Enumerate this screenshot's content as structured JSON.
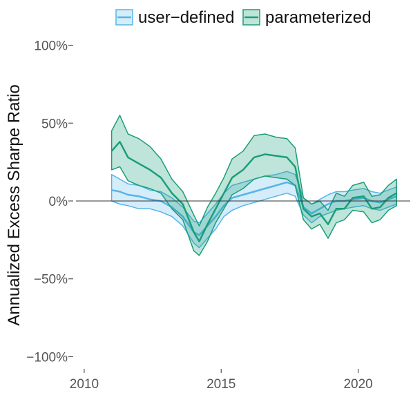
{
  "chart_data": {
    "type": "area",
    "title": "",
    "xlabel": "",
    "ylabel": "Annualized Excess Sharpe Ratio",
    "xlim": [
      2009.7,
      2021.9
    ],
    "ylim": [
      -1.06,
      1.06
    ],
    "x_ticks": [
      2010,
      2015,
      2020
    ],
    "y_ticks": [
      -1.0,
      -0.5,
      0.0,
      0.5,
      1.0
    ],
    "x_tick_labels": [
      "2010",
      "2015",
      "2020"
    ],
    "y_tick_labels": [
      "−100%",
      "−50%",
      "0%",
      "50%",
      "100%"
    ],
    "y_format": "percent",
    "grid": false,
    "reference_line_y": 0,
    "legend_position": "top",
    "series": [
      {
        "name": "user−defined",
        "color": "#56B4E9",
        "x": [
          2011.0,
          2011.3,
          2011.6,
          2012.0,
          2012.4,
          2012.8,
          2013.2,
          2013.6,
          2014.0,
          2014.2,
          2014.5,
          2014.8,
          2015.1,
          2015.4,
          2015.8,
          2016.2,
          2016.6,
          2017.0,
          2017.4,
          2017.7,
          2018.0,
          2018.3,
          2018.6,
          2018.9,
          2019.2,
          2019.5,
          2019.8,
          2020.2,
          2020.5,
          2020.8,
          2021.1,
          2021.4
        ],
        "mean": [
          0.07,
          0.06,
          0.04,
          0.03,
          0.01,
          0.0,
          -0.04,
          -0.1,
          -0.2,
          -0.22,
          -0.16,
          -0.1,
          -0.03,
          0.02,
          0.04,
          0.06,
          0.08,
          0.1,
          0.12,
          0.1,
          -0.04,
          -0.08,
          -0.05,
          -0.02,
          0.0,
          0.0,
          0.01,
          0.02,
          0.0,
          -0.01,
          0.01,
          0.03
        ],
        "lower": [
          0.0,
          -0.02,
          -0.03,
          -0.05,
          -0.05,
          -0.07,
          -0.1,
          -0.16,
          -0.27,
          -0.3,
          -0.24,
          -0.18,
          -0.1,
          -0.06,
          -0.03,
          -0.01,
          0.01,
          0.03,
          0.05,
          0.03,
          -0.09,
          -0.14,
          -0.1,
          -0.08,
          -0.06,
          -0.05,
          -0.04,
          -0.03,
          -0.05,
          -0.06,
          -0.04,
          -0.02
        ],
        "upper": [
          0.17,
          0.14,
          0.11,
          0.1,
          0.07,
          0.06,
          0.02,
          -0.04,
          -0.13,
          -0.14,
          -0.08,
          -0.02,
          0.05,
          0.1,
          0.12,
          0.14,
          0.16,
          0.17,
          0.19,
          0.17,
          0.02,
          -0.02,
          0.01,
          0.04,
          0.06,
          0.06,
          0.07,
          0.08,
          0.06,
          0.05,
          0.07,
          0.09
        ]
      },
      {
        "name": "parameterized",
        "color": "#1A9E77",
        "x": [
          2011.0,
          2011.3,
          2011.6,
          2012.0,
          2012.4,
          2012.8,
          2013.2,
          2013.6,
          2014.0,
          2014.2,
          2014.5,
          2014.8,
          2015.1,
          2015.4,
          2015.8,
          2016.2,
          2016.6,
          2017.0,
          2017.4,
          2017.7,
          2018.0,
          2018.3,
          2018.6,
          2018.9,
          2019.2,
          2019.5,
          2019.8,
          2020.2,
          2020.5,
          2020.8,
          2021.1,
          2021.4
        ],
        "mean": [
          0.32,
          0.38,
          0.28,
          0.24,
          0.2,
          0.15,
          0.05,
          -0.02,
          -0.2,
          -0.26,
          -0.15,
          -0.05,
          0.05,
          0.15,
          0.2,
          0.28,
          0.3,
          0.29,
          0.28,
          0.22,
          -0.05,
          -0.1,
          -0.08,
          -0.15,
          -0.05,
          -0.05,
          0.02,
          0.03,
          -0.05,
          -0.04,
          0.02,
          0.05
        ],
        "lower": [
          0.2,
          0.22,
          0.13,
          0.1,
          0.08,
          0.05,
          -0.05,
          -0.12,
          -0.32,
          -0.35,
          -0.26,
          -0.14,
          -0.05,
          0.04,
          0.08,
          0.14,
          0.16,
          0.15,
          0.14,
          0.1,
          -0.12,
          -0.18,
          -0.15,
          -0.24,
          -0.14,
          -0.12,
          -0.06,
          -0.07,
          -0.14,
          -0.12,
          -0.06,
          -0.03
        ],
        "upper": [
          0.45,
          0.55,
          0.43,
          0.4,
          0.35,
          0.27,
          0.14,
          0.06,
          -0.09,
          -0.16,
          -0.04,
          0.05,
          0.15,
          0.27,
          0.32,
          0.42,
          0.43,
          0.41,
          0.4,
          0.34,
          0.02,
          -0.02,
          0.0,
          -0.06,
          0.05,
          0.03,
          0.1,
          0.12,
          0.03,
          0.04,
          0.1,
          0.14
        ]
      }
    ]
  }
}
